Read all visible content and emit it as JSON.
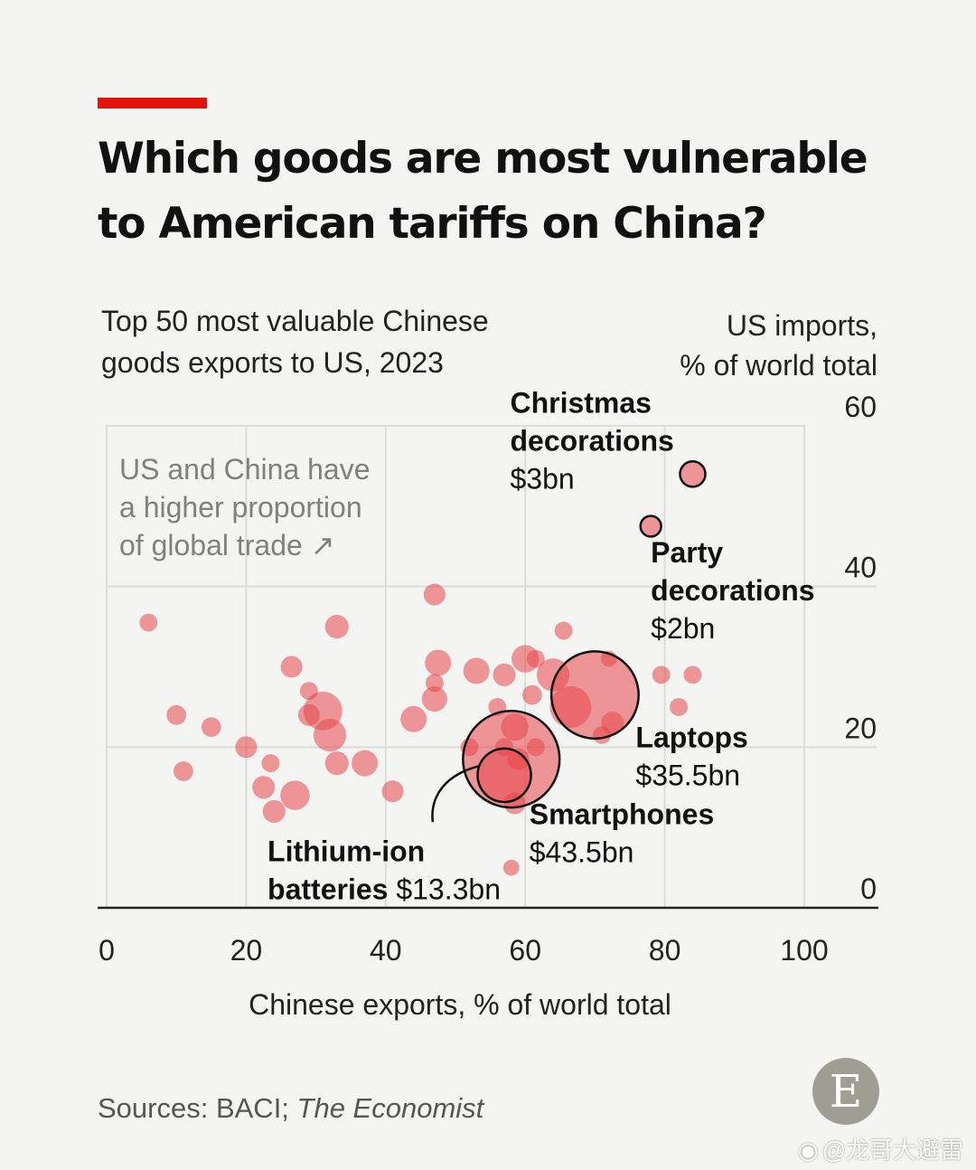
{
  "header": {
    "title_line1": "Which goods are most vulnerable",
    "title_line2": "to American tariffs on China?",
    "subtitle_line1": "Top 50 most valuable Chinese",
    "subtitle_line2": "goods exports to US, 2023",
    "accent_color": "#e3120b"
  },
  "footer": {
    "source_prefix": "Sources: BACI; ",
    "source_italic": "The Economist",
    "logo_letter": "E",
    "watermark": "@龙哥大避雷"
  },
  "chart_data": {
    "type": "scatter",
    "title": "Which goods are most vulnerable to American tariffs on China?",
    "subtitle": "Top 50 most valuable Chinese goods exports to US, 2023",
    "xlabel": "Chinese exports, % of world total",
    "ylabel_line1": "US imports,",
    "ylabel_line2": "% of world total",
    "xlim": [
      0,
      100
    ],
    "ylim": [
      0,
      60
    ],
    "xticks": [
      "0",
      "20",
      "40",
      "60",
      "80",
      "100"
    ],
    "yticks": [
      "0",
      "20",
      "40",
      "60"
    ],
    "grid": true,
    "bubble_color": "#e8464a",
    "annotation_quadrant": {
      "line1": "US and China have",
      "line2": "a higher proportion",
      "line3": "of global trade ↗"
    },
    "labels": [
      {
        "id": "christmas",
        "name_lines": [
          "Christmas",
          "decorations"
        ],
        "value": "$3bn"
      },
      {
        "id": "party",
        "name_lines": [
          "Party",
          "decorations"
        ],
        "value": "$2bn"
      },
      {
        "id": "laptops",
        "name_lines": [
          "Laptops"
        ],
        "value": "$35.5bn"
      },
      {
        "id": "smartphones",
        "name_lines": [
          "Smartphones"
        ],
        "value": "$43.5bn"
      },
      {
        "id": "lithium",
        "name_lines": [
          "Lithium-ion",
          "batteries"
        ],
        "value": "$13.3bn"
      }
    ],
    "highlighted": [
      {
        "name": "Christmas decorations",
        "x": 84,
        "y": 54,
        "size": 3
      },
      {
        "name": "Party decorations",
        "x": 78,
        "y": 47.5,
        "size": 2
      },
      {
        "name": "Laptops",
        "x": 70,
        "y": 26.5,
        "size": 35.5
      },
      {
        "name": "Smartphones",
        "x": 58,
        "y": 18.5,
        "size": 43.5
      },
      {
        "name": "Lithium-ion batteries",
        "x": 57,
        "y": 16.5,
        "size": 13.3
      }
    ],
    "points": [
      {
        "x": 6,
        "y": 35.5,
        "size": 1.5
      },
      {
        "x": 10,
        "y": 24,
        "size": 1.8
      },
      {
        "x": 11,
        "y": 17,
        "size": 1.8
      },
      {
        "x": 15,
        "y": 22.5,
        "size": 1.8
      },
      {
        "x": 20,
        "y": 20,
        "size": 2.2
      },
      {
        "x": 22.5,
        "y": 15,
        "size": 2.4
      },
      {
        "x": 23.5,
        "y": 18,
        "size": 1.5
      },
      {
        "x": 24,
        "y": 12,
        "size": 2.4
      },
      {
        "x": 27,
        "y": 14,
        "size": 4
      },
      {
        "x": 26.5,
        "y": 30,
        "size": 2.2
      },
      {
        "x": 29,
        "y": 27,
        "size": 1.5
      },
      {
        "x": 29,
        "y": 24,
        "size": 2.2
      },
      {
        "x": 31,
        "y": 24.5,
        "size": 7
      },
      {
        "x": 32,
        "y": 21.5,
        "size": 5
      },
      {
        "x": 33,
        "y": 35,
        "size": 2.6
      },
      {
        "x": 33,
        "y": 18,
        "size": 2.6
      },
      {
        "x": 37,
        "y": 18,
        "size": 3.2
      },
      {
        "x": 41,
        "y": 14.5,
        "size": 2.2
      },
      {
        "x": 44,
        "y": 23.5,
        "size": 3.2
      },
      {
        "x": 47,
        "y": 26,
        "size": 3
      },
      {
        "x": 47,
        "y": 28,
        "size": 1.5
      },
      {
        "x": 47.5,
        "y": 30.5,
        "size": 3.2
      },
      {
        "x": 47,
        "y": 39,
        "size": 2.2
      },
      {
        "x": 52,
        "y": 20,
        "size": 1.5
      },
      {
        "x": 53,
        "y": 29.5,
        "size": 3.2
      },
      {
        "x": 56,
        "y": 25,
        "size": 1.5
      },
      {
        "x": 57,
        "y": 29,
        "size": 2.4
      },
      {
        "x": 58.5,
        "y": 22.5,
        "size": 3.5
      },
      {
        "x": 60,
        "y": 31,
        "size": 3.5
      },
      {
        "x": 59,
        "y": 18.5,
        "size": 2.2
      },
      {
        "x": 61,
        "y": 26.5,
        "size": 1.8
      },
      {
        "x": 61.5,
        "y": 20,
        "size": 1.5
      },
      {
        "x": 61.5,
        "y": 31,
        "size": 1.5
      },
      {
        "x": 65.5,
        "y": 34.5,
        "size": 1.5
      },
      {
        "x": 64,
        "y": 29,
        "size": 5
      },
      {
        "x": 66.5,
        "y": 25,
        "size": 8
      },
      {
        "x": 72,
        "y": 31,
        "size": 1.2
      },
      {
        "x": 79.5,
        "y": 29,
        "size": 1.5
      },
      {
        "x": 84,
        "y": 29,
        "size": 1.5
      },
      {
        "x": 82,
        "y": 25,
        "size": 1.5
      },
      {
        "x": 72.5,
        "y": 23,
        "size": 2.4
      },
      {
        "x": 71,
        "y": 21.5,
        "size": 1.5
      },
      {
        "x": 58.5,
        "y": 13,
        "size": 2.2
      },
      {
        "x": 58,
        "y": 5,
        "size": 1.2
      },
      {
        "x": 57,
        "y": 20,
        "size": 1.5
      }
    ]
  }
}
